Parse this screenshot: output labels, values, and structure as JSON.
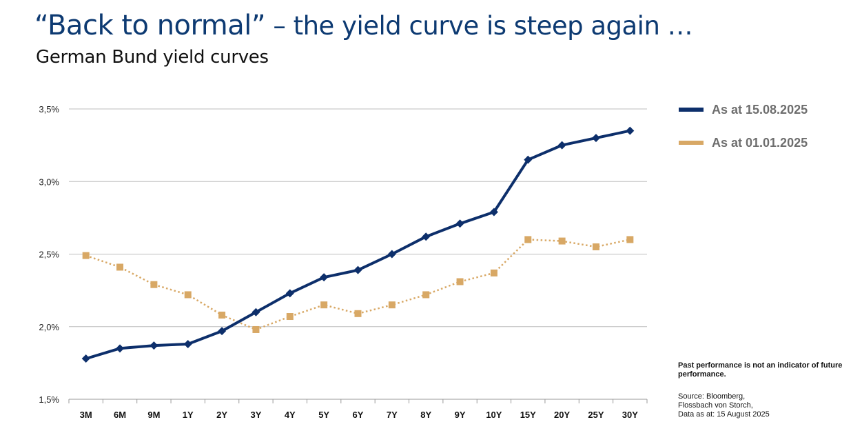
{
  "header": {
    "title_lead": "“Back to normal”",
    "title_rest": " – the yield curve is steep again …",
    "subtitle": "German Bund yield curves"
  },
  "chart_data": {
    "type": "line",
    "title": "German Bund yield curves",
    "categories": [
      "3M",
      "6M",
      "9M",
      "1Y",
      "2Y",
      "3Y",
      "4Y",
      "5Y",
      "6Y",
      "7Y",
      "8Y",
      "9Y",
      "10Y",
      "15Y",
      "20Y",
      "25Y",
      "30Y"
    ],
    "y_ticks": [
      "3,5%",
      "3,0%",
      "2,5%",
      "2,0%",
      "1,5%"
    ],
    "y_tick_values": [
      3.5,
      3.0,
      2.5,
      2.0,
      1.5
    ],
    "ylim": [
      1.5,
      3.5
    ],
    "grid": true,
    "legend_placement": "right",
    "series": [
      {
        "name": "As at 15.08.2025",
        "color": "#0d2f6b",
        "style": "solid",
        "marker": "diamond",
        "values": [
          1.78,
          1.85,
          1.87,
          1.88,
          1.97,
          2.1,
          2.23,
          2.34,
          2.39,
          2.5,
          2.62,
          2.71,
          2.79,
          3.15,
          3.25,
          3.3,
          3.35
        ]
      },
      {
        "name": "As at 01.01.2025",
        "color": "#d8a865",
        "style": "dotted",
        "marker": "square",
        "values": [
          2.49,
          2.41,
          2.29,
          2.22,
          2.08,
          1.98,
          2.07,
          2.15,
          2.09,
          2.15,
          2.22,
          2.31,
          2.37,
          2.6,
          2.59,
          2.55,
          2.6
        ]
      }
    ]
  },
  "notes": {
    "disclaimer": "Past performance is not an indicator of future performance.",
    "source_line1": "Source: Bloomberg,",
    "source_line2": "Flossbach von Storch,",
    "source_line3": "Data as at: 15 August 2025"
  }
}
